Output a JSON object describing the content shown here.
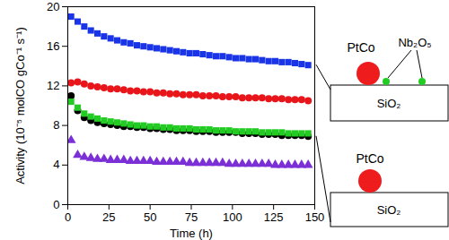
{
  "chart_data": {
    "type": "scatter",
    "xlabel": "Time (h)",
    "ylabel": "Activity (10⁻⁵ molCO gCo⁻¹ s⁻¹)",
    "x": [
      2,
      6,
      10,
      14,
      18,
      22,
      26,
      30,
      34,
      38,
      42,
      46,
      50,
      54,
      58,
      62,
      66,
      70,
      74,
      78,
      82,
      86,
      90,
      94,
      98,
      102,
      106,
      110,
      114,
      118,
      122,
      126,
      130,
      134,
      138,
      142,
      146
    ],
    "xlim": [
      0,
      150
    ],
    "xticks": [
      0,
      25,
      50,
      75,
      100,
      125,
      150
    ],
    "ylim": [
      0,
      20
    ],
    "yticks": [
      0,
      4,
      8,
      12,
      16,
      20
    ],
    "series": [
      {
        "color": "#1a35e8",
        "marker": "square",
        "values": [
          19.0,
          18.5,
          18.0,
          17.6,
          17.3,
          17.0,
          16.8,
          16.6,
          16.4,
          16.3,
          16.1,
          16.0,
          15.9,
          15.8,
          15.7,
          15.6,
          15.5,
          15.4,
          15.3,
          15.3,
          15.2,
          15.1,
          15.0,
          15.0,
          14.9,
          14.8,
          14.8,
          14.7,
          14.7,
          14.6,
          14.5,
          14.5,
          14.4,
          14.4,
          14.3,
          14.2,
          14.1
        ]
      },
      {
        "color": "#e8161b",
        "marker": "circle",
        "values": [
          12.3,
          12.4,
          12.2,
          12.0,
          11.9,
          11.8,
          11.7,
          11.7,
          11.6,
          11.5,
          11.5,
          11.4,
          11.4,
          11.3,
          11.3,
          11.2,
          11.2,
          11.1,
          11.1,
          11.1,
          11.0,
          11.0,
          11.0,
          10.9,
          10.9,
          10.9,
          10.8,
          10.8,
          10.8,
          10.8,
          10.7,
          10.7,
          10.7,
          10.6,
          10.6,
          10.6,
          10.5
        ]
      },
      {
        "color": "#000000",
        "marker": "circle",
        "values": [
          11.0,
          9.5,
          8.8,
          8.5,
          8.3,
          8.2,
          8.1,
          8.0,
          7.9,
          7.9,
          7.8,
          7.8,
          7.7,
          7.7,
          7.6,
          7.6,
          7.5,
          7.5,
          7.5,
          7.4,
          7.4,
          7.4,
          7.3,
          7.3,
          7.3,
          7.3,
          7.2,
          7.2,
          7.2,
          7.1,
          7.1,
          7.1,
          7.0,
          7.0,
          7.0,
          7.0,
          6.9
        ]
      },
      {
        "color": "#22cc22",
        "marker": "square",
        "values": [
          10.4,
          9.8,
          9.2,
          8.9,
          8.7,
          8.5,
          8.4,
          8.3,
          8.2,
          8.1,
          8.0,
          8.0,
          7.9,
          7.9,
          7.8,
          7.8,
          7.7,
          7.7,
          7.7,
          7.6,
          7.6,
          7.6,
          7.5,
          7.5,
          7.5,
          7.4,
          7.4,
          7.4,
          7.4,
          7.3,
          7.3,
          7.3,
          7.3,
          7.2,
          7.2,
          7.2,
          7.2
        ]
      },
      {
        "color": "#7b2fd6",
        "marker": "triangle",
        "values": [
          6.5,
          5.0,
          4.8,
          4.7,
          4.6,
          4.6,
          4.5,
          4.5,
          4.5,
          4.4,
          4.4,
          4.4,
          4.4,
          4.3,
          4.3,
          4.3,
          4.3,
          4.3,
          4.2,
          4.2,
          4.2,
          4.2,
          4.2,
          4.2,
          4.1,
          4.1,
          4.1,
          4.1,
          4.1,
          4.1,
          4.1,
          4.0,
          4.0,
          4.0,
          4.0,
          4.0,
          4.0
        ]
      }
    ],
    "annotations": [
      "PtCo",
      "Nb₂O₅",
      "SiO₂",
      "PtCo",
      "SiO₂"
    ]
  }
}
